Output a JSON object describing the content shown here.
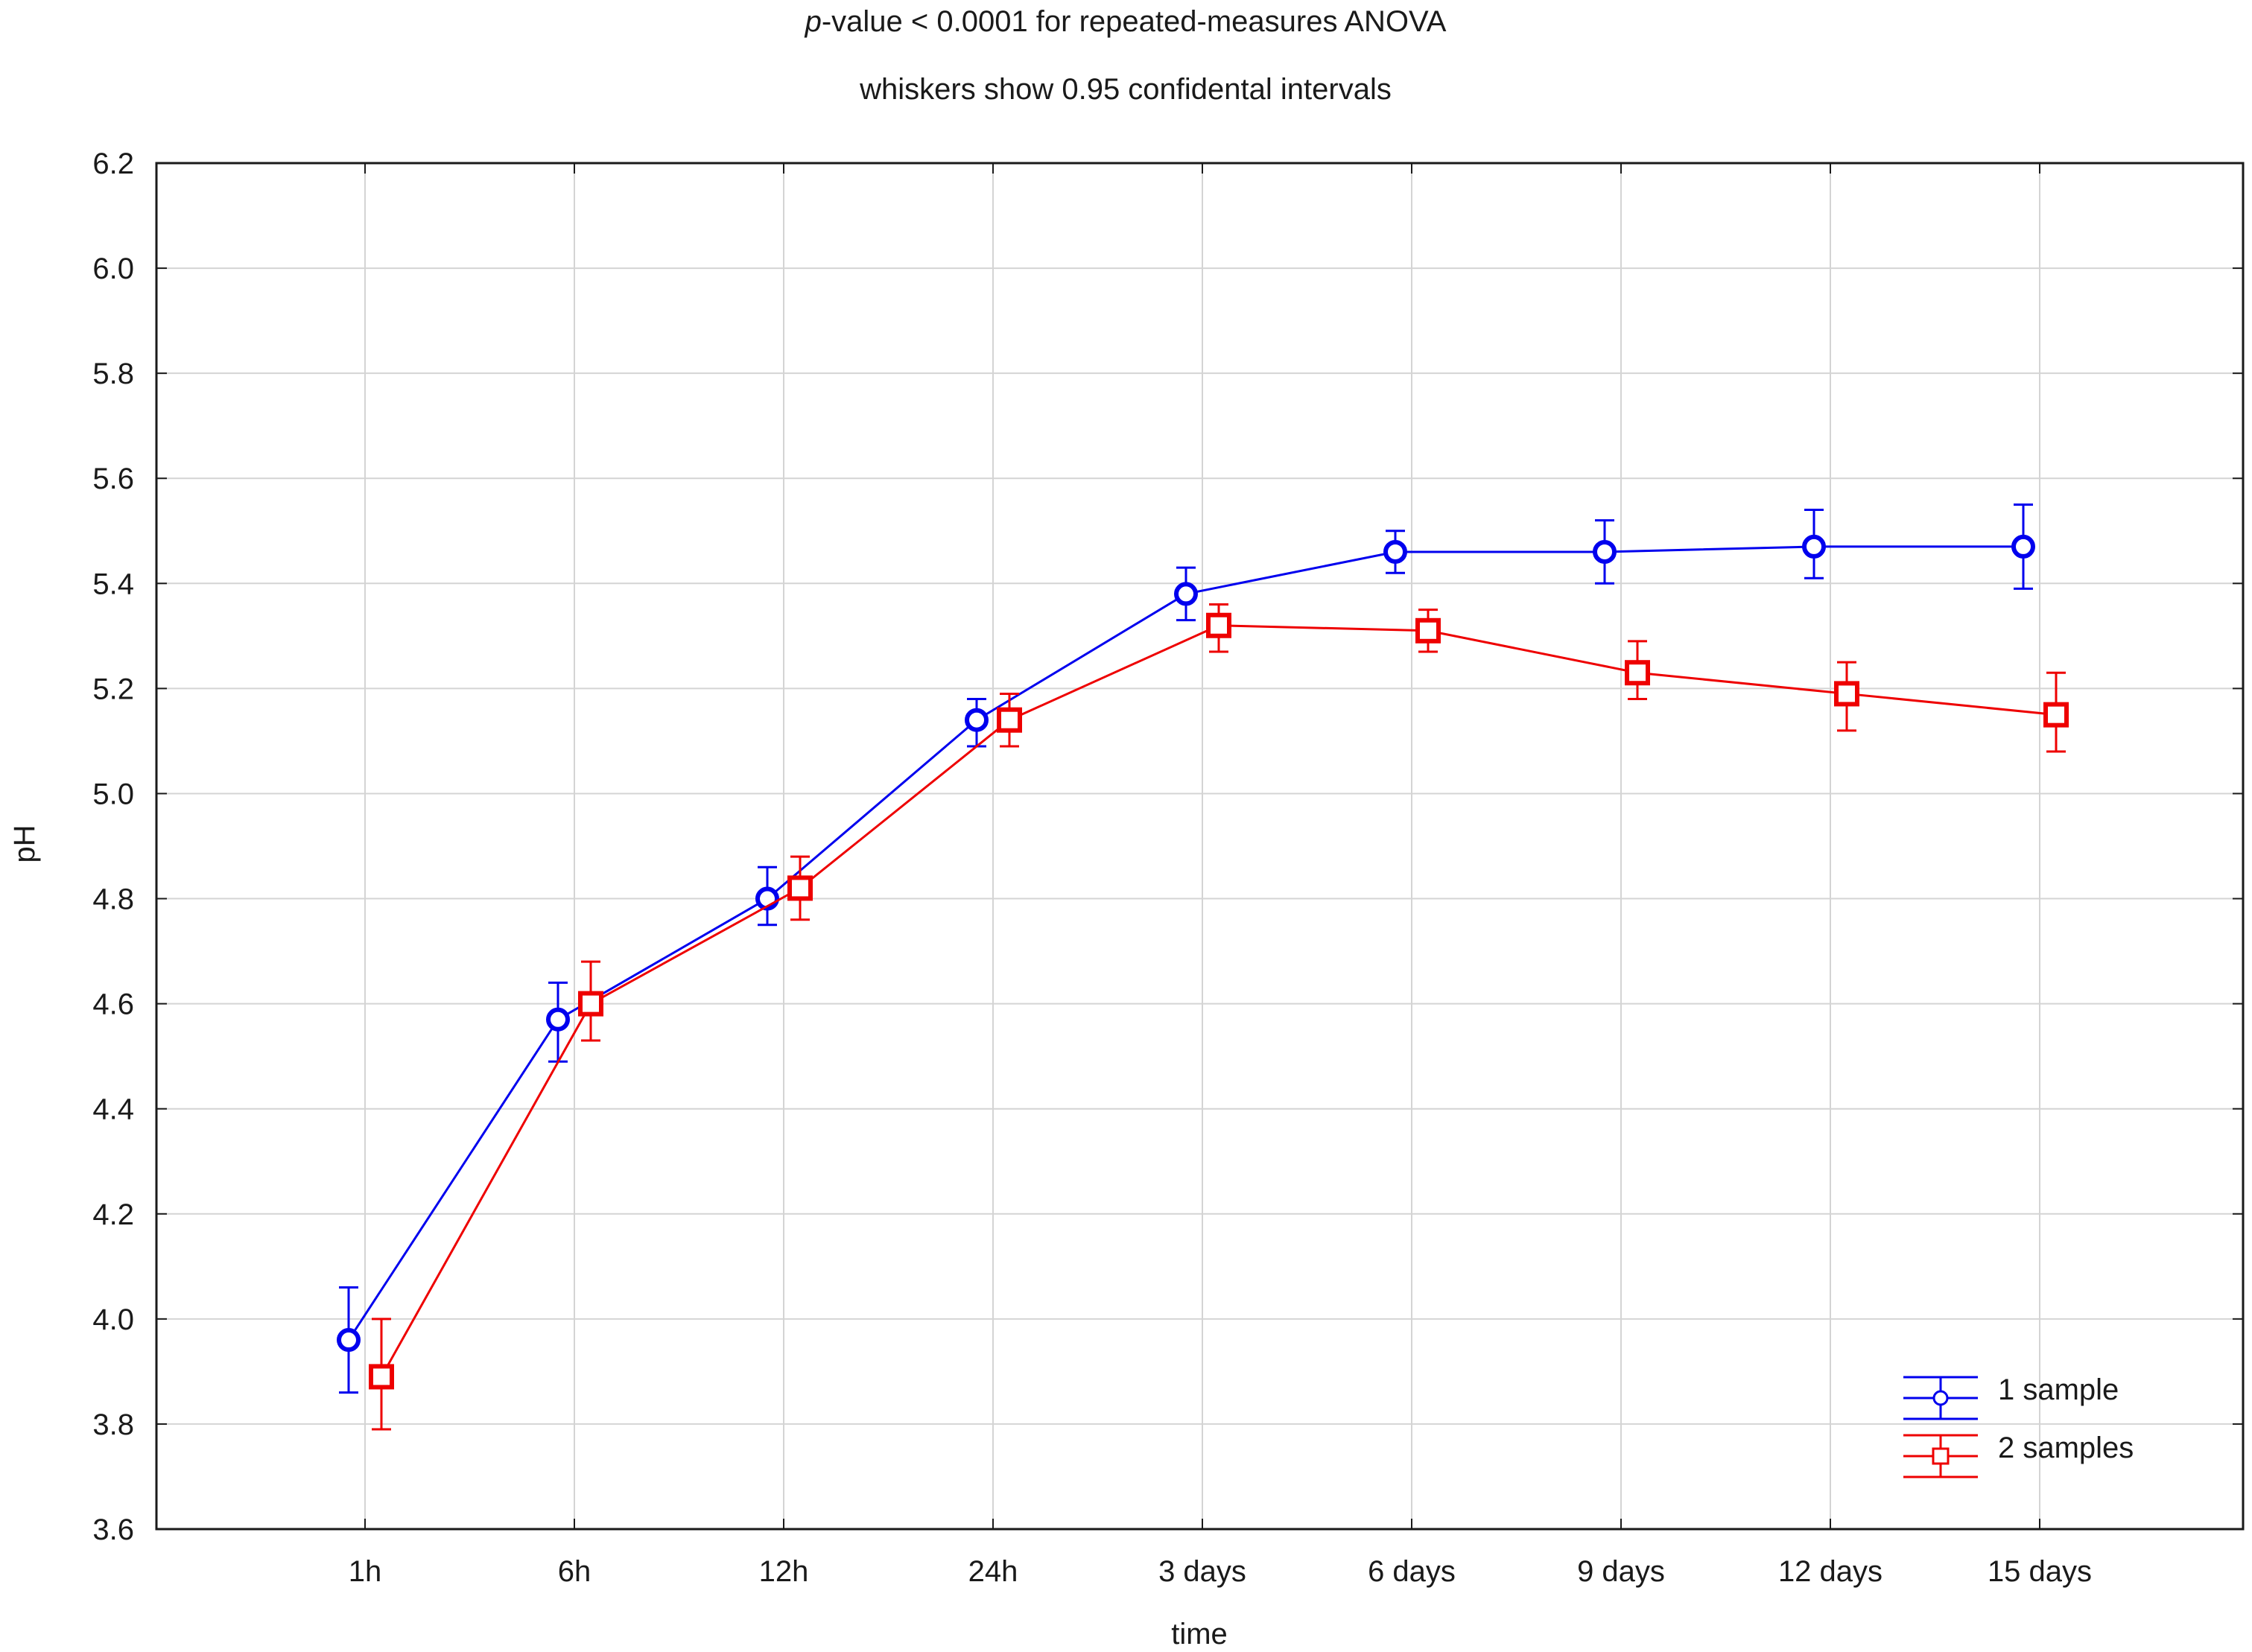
{
  "title": {
    "prefix": "p",
    "rest": "-value < 0.0001 for repeated-measures ANOVA"
  },
  "subtitle": "whiskers show 0.95 confidental intervals",
  "chart_data": {
    "type": "line",
    "title": "p-value < 0.0001 for repeated-measures ANOVA",
    "subtitle": "whiskers show 0.95 confidental intervals",
    "xlabel": "time",
    "ylabel": "pH",
    "categories": [
      "1h",
      "6h",
      "12h",
      "24h",
      "3 days",
      "6 days",
      "9 days",
      "12 days",
      "15 days"
    ],
    "ylim": [
      3.6,
      6.2
    ],
    "yticks": [
      "3.6",
      "3.8",
      "4.0",
      "4.2",
      "4.4",
      "4.6",
      "4.8",
      "5.0",
      "5.2",
      "5.4",
      "5.6",
      "5.8",
      "6.0",
      "6.2"
    ],
    "grid": true,
    "legend_position": "bottom-right",
    "series": [
      {
        "name": "1 sample",
        "color": "#0000ee",
        "marker": "circle",
        "values": [
          3.96,
          4.57,
          4.8,
          5.14,
          5.38,
          5.46,
          5.46,
          5.47,
          5.47
        ],
        "ci_low": [
          3.86,
          4.49,
          4.75,
          5.09,
          5.33,
          5.42,
          5.4,
          5.41,
          5.39
        ],
        "ci_high": [
          4.06,
          4.64,
          4.86,
          5.18,
          5.43,
          5.5,
          5.52,
          5.54,
          5.55
        ]
      },
      {
        "name": "2 samples",
        "color": "#ee0000",
        "marker": "square",
        "values": [
          3.89,
          4.6,
          4.82,
          5.14,
          5.32,
          5.31,
          5.23,
          5.19,
          5.15
        ],
        "ci_low": [
          3.79,
          4.53,
          4.76,
          5.09,
          5.27,
          5.27,
          5.18,
          5.12,
          5.08
        ],
        "ci_high": [
          4.0,
          4.68,
          4.88,
          5.19,
          5.36,
          5.35,
          5.29,
          5.25,
          5.23
        ]
      }
    ]
  }
}
